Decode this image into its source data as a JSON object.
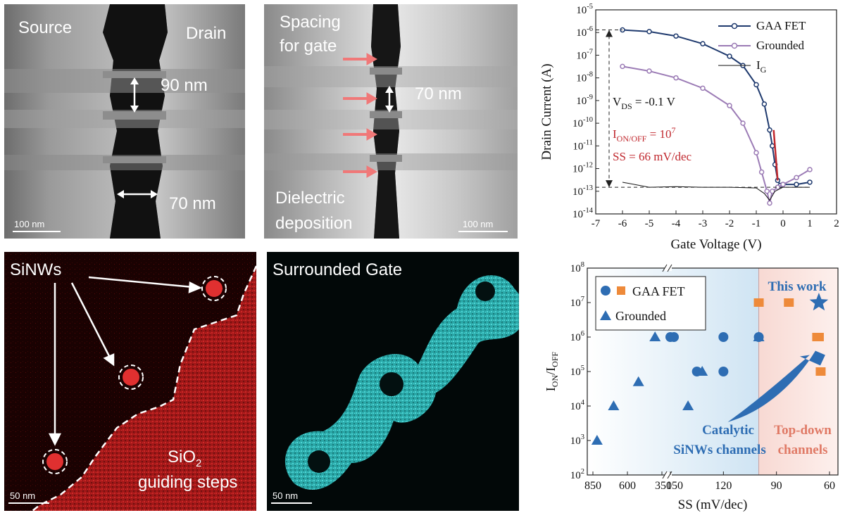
{
  "colors": {
    "gaa": "#1f3a6e",
    "grounded": "#9b7bb5",
    "ig": "#111111",
    "red": "#c0272d",
    "blue_pt": "#2e6db3",
    "orange_pt": "#ee8a3a",
    "blue_bg": "#cfe4f3",
    "red_bg": "#f8d9d3"
  },
  "panel_a": {
    "source": "Source",
    "drain": "Drain",
    "dim1": "90 nm",
    "dim2": "70 nm",
    "scale": "100 nm"
  },
  "panel_b": {
    "spacing_line1": "Spacing",
    "spacing_line2": "for gate",
    "dim": "70 nm",
    "dielectric_line1": "Dielectric",
    "dielectric_line2": "deposition",
    "scale": "100 nm"
  },
  "panel_d": {
    "sinws": "SiNWs",
    "sio2_main": "SiO",
    "sio2_sub": "2",
    "steps": "guiding steps",
    "scale": "50 nm"
  },
  "panel_e": {
    "title": "Surrounded Gate",
    "scale": "50 nm"
  },
  "chart_data": [
    {
      "type": "line",
      "xlabel": "Gate Voltage (V)",
      "ylabel": "Drain Current (A)",
      "xlim": [
        -7,
        2
      ],
      "ylim_log10": [
        -14,
        -5
      ],
      "log_y": true,
      "x_ticks": [
        "-7",
        "-6",
        "-5",
        "-4",
        "-3",
        "-2",
        "-1",
        "0",
        "1",
        "2"
      ],
      "y_tick_base": "10",
      "y_tick_exps": [
        "-14",
        "-13",
        "-12",
        "-11",
        "-10",
        "-9",
        "-8",
        "-7",
        "-6",
        "-5"
      ],
      "legend": [
        "GAA FET",
        "Grounded",
        "I",
        "G"
      ],
      "annot_vds": "V",
      "annot_vds_sub": "DS",
      "annot_vds_rest": " = -0.1 V",
      "annot_ion": "I",
      "annot_ion_sub": "ON/OFF",
      "annot_ion_rest": " = 10",
      "annot_ion_exp": "7",
      "annot_ss": "SS = 66 mV/dec",
      "series": [
        {
          "name": "GAA FET",
          "x": [
            -6.0,
            -5.0,
            -4.0,
            -3.0,
            -2.0,
            -1.5,
            -1.0,
            -0.7,
            -0.5,
            -0.4,
            -0.3,
            -0.2,
            -0.1,
            0.0,
            0.5,
            1.0
          ],
          "y": [
            1.3e-06,
            1.1e-06,
            7e-07,
            3.2e-07,
            9e-08,
            3.5e-08,
            5e-09,
            7e-10,
            5e-11,
            1e-11,
            1.5e-12,
            3e-13,
            1.8e-13,
            2e-13,
            2e-13,
            2.5e-13
          ]
        },
        {
          "name": "Grounded",
          "x": [
            -6.0,
            -5.0,
            -4.0,
            -3.0,
            -2.0,
            -1.5,
            -1.0,
            -0.8,
            -0.6,
            -0.5,
            -0.4,
            -0.2,
            0.0,
            0.5,
            1.0
          ],
          "y": [
            3.2e-08,
            2e-08,
            1e-08,
            3.5e-09,
            6e-10,
            1e-10,
            5e-12,
            7e-13,
            1e-13,
            3e-14,
            1e-13,
            1.5e-13,
            2e-13,
            4e-13,
            9e-13
          ]
        },
        {
          "name": "IG",
          "x": [
            -6.0,
            -5.0,
            -4.0,
            -3.0,
            -2.0,
            -1.0,
            -0.7,
            -0.5,
            -0.3,
            0.0,
            0.5,
            1.0
          ],
          "y": [
            2.5e-13,
            1.5e-13,
            1.6e-13,
            1.5e-13,
            1.5e-13,
            1.4e-13,
            8e-14,
            4e-14,
            1e-13,
            1.5e-13,
            1.5e-13,
            1.5e-13
          ]
        }
      ]
    },
    {
      "type": "scatter",
      "xlabel": "SS (mV/dec)",
      "ylabel_main": "I",
      "ylabel_sub1": "ON",
      "ylabel_sep": "/I",
      "ylabel_sub2": "OFF",
      "ylim_log10": [
        2,
        8
      ],
      "log_y": true,
      "x_ticks": [
        "850",
        "600",
        "350",
        "150",
        "120",
        "90",
        "60"
      ],
      "y_tick_base": "10",
      "y_tick_exps": [
        "2",
        "3",
        "4",
        "5",
        "6",
        "7",
        "8"
      ],
      "legend": [
        "GAA FET",
        "Grounded"
      ],
      "label_this_work": "This work",
      "label_catalytic_1": "Catalytic",
      "label_catalytic_2": "SiNWs channels",
      "label_topdown_1": "Top-down",
      "label_topdown_2": "channels",
      "series": [
        {
          "name": "GAA FET",
          "marker": "circle",
          "x": [
            150,
            148,
            135,
            120,
            120,
            100
          ],
          "y": [
            1000000,
            1000000,
            100000,
            1000000,
            100000,
            1000000
          ]
        },
        {
          "name": "GAA FET",
          "marker": "square",
          "x": [
            100,
            83,
            67,
            66,
            65
          ],
          "y": [
            10000000,
            10000000,
            1000000,
            1000000,
            100000
          ]
        },
        {
          "name": "Grounded",
          "marker": "triangle",
          "x": [
            820,
            700,
            520,
            400,
            132,
            140,
            100
          ],
          "y": [
            1000,
            10000,
            50000,
            1000000,
            100000,
            10000,
            1000000
          ]
        },
        {
          "name": "This work",
          "marker": "star",
          "x": [
            66
          ],
          "y": [
            10000000
          ]
        }
      ]
    }
  ]
}
